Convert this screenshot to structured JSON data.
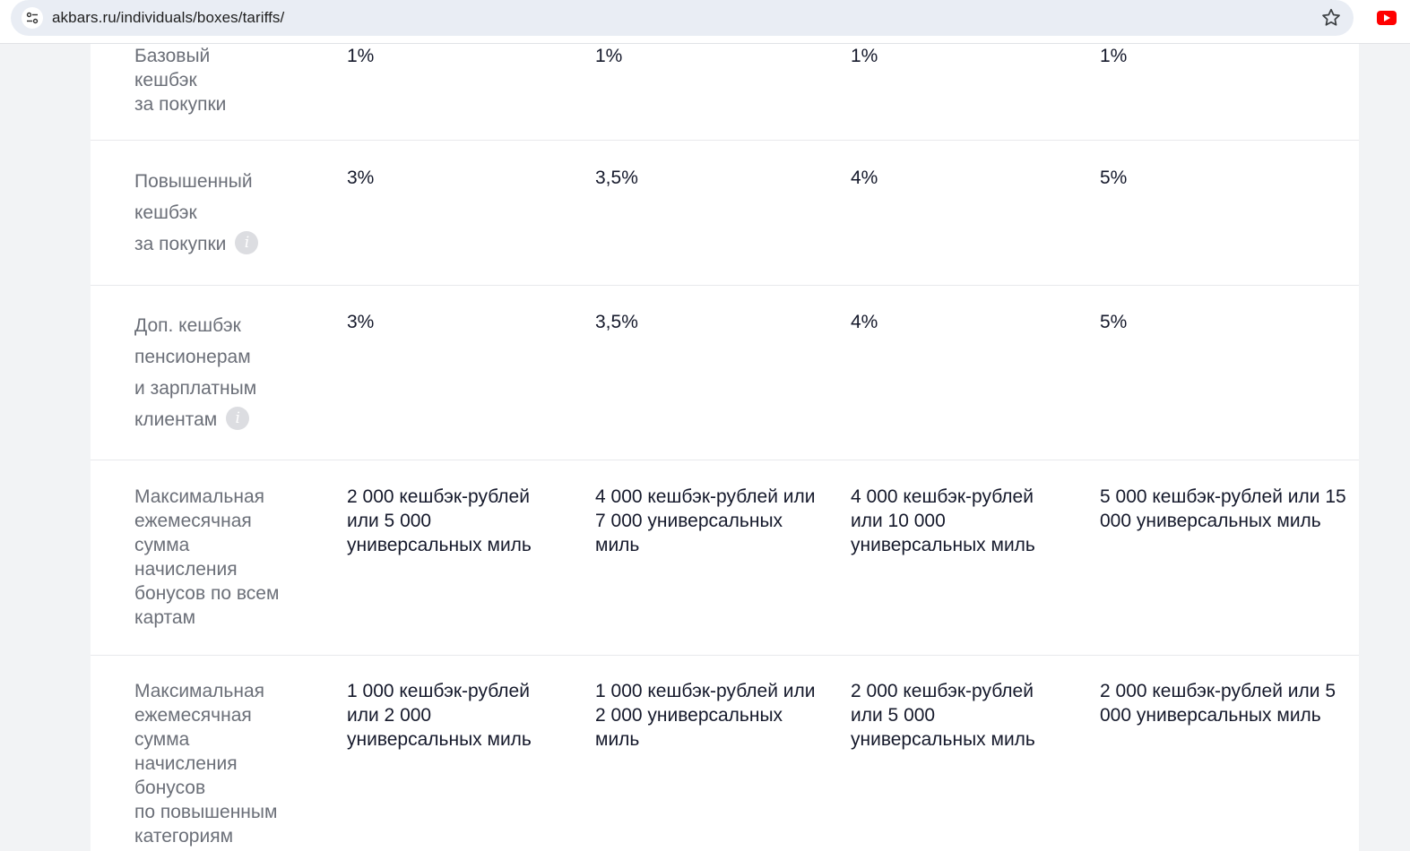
{
  "browser": {
    "url": "akbars.ru/individuals/boxes/tariffs/",
    "site_info_icon": "tune-icon",
    "bookmark_icon": "star-icon",
    "extension_icon": "youtube-icon"
  },
  "table": {
    "rows": [
      {
        "label_lines": [
          "Базовый",
          "кешбэк",
          "за покупки"
        ],
        "info": false,
        "values": [
          "1%",
          "1%",
          "1%",
          "1%"
        ]
      },
      {
        "label_lines": [
          "Повышенный",
          "кешбэк",
          "за покупки"
        ],
        "info": true,
        "info_glyph": "i",
        "values": [
          "3%",
          "3,5%",
          "4%",
          "5%"
        ]
      },
      {
        "label_lines": [
          "Доп. кешбэк",
          "пенсионерам",
          "и зарплатным",
          "клиентам"
        ],
        "info": true,
        "info_glyph": "i",
        "values": [
          "3%",
          "3,5%",
          "4%",
          "5%"
        ]
      },
      {
        "label_lines": [
          "Максимальная",
          "ежемесячная",
          "сумма",
          "начисления",
          "бонусов по всем",
          "картам"
        ],
        "info": false,
        "values": [
          "2 000 кешбэк-рублей или 5 000 универсальных миль",
          "4 000 кешбэк-рублей или 7 000 универсальных миль",
          "4 000 кешбэк-рублей или 10 000 универсальных миль",
          "5 000 кешбэк-рублей или 15 000 универсальных миль"
        ]
      },
      {
        "label_lines": [
          "Максимальная",
          "ежемесячная",
          "сумма",
          "начисления",
          "бонусов",
          "по повышенным",
          "категориям"
        ],
        "info": false,
        "values": [
          "1 000 кешбэк-рублей или 2 000 универсальных миль",
          "1 000 кешбэк-рублей или 2 000 универсальных миль",
          "2 000 кешбэк-рублей или 5 000 универсальных миль",
          "2 000 кешбэк-рублей или 5 000 универсальных миль"
        ]
      }
    ]
  }
}
